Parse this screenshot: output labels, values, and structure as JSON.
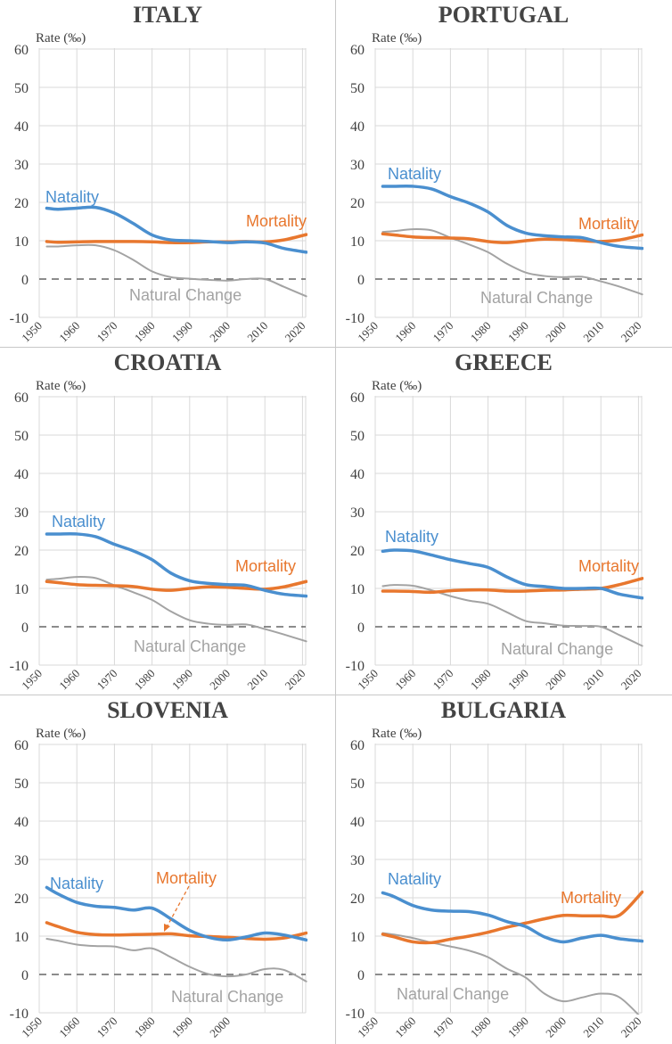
{
  "chart_data": [
    {
      "type": "line",
      "title": "ITALY",
      "ylabel": "Rate (‰)",
      "ylim": [
        -10,
        60
      ],
      "yticks": [
        "60",
        "50",
        "40",
        "30",
        "20",
        "10",
        "0",
        "-10"
      ],
      "xticks": [
        "1950",
        "1960",
        "1970",
        "1980",
        "1990",
        "2000",
        "2010",
        "2020"
      ],
      "x": [
        1952,
        1955,
        1960,
        1965,
        1970,
        1975,
        1980,
        1985,
        1990,
        1995,
        2000,
        2005,
        2010,
        2015,
        2021
      ],
      "series": [
        {
          "name": "Natality",
          "color": "#4a8fcf",
          "values": [
            18.5,
            18.2,
            18.5,
            18.7,
            17.2,
            14.5,
            11.5,
            10.2,
            10,
            9.8,
            9.5,
            9.7,
            9.4,
            8,
            7
          ]
        },
        {
          "name": "Mortality",
          "color": "#e8772e",
          "values": [
            9.8,
            9.6,
            9.7,
            9.8,
            9.8,
            9.8,
            9.7,
            9.5,
            9.5,
            9.7,
            9.7,
            9.8,
            9.7,
            10.2,
            11.6
          ]
        },
        {
          "name": "Natural Change",
          "color": "#a3a3a3",
          "values": [
            8.5,
            8.5,
            8.8,
            8.8,
            7.5,
            5,
            2,
            0.5,
            0.1,
            -0.2,
            -0.4,
            0,
            0,
            -2,
            -4.5
          ]
        }
      ]
    },
    {
      "type": "line",
      "title": "PORTUGAL",
      "ylabel": "Rate (‰)",
      "ylim": [
        -10,
        60
      ],
      "yticks": [
        "60",
        "50",
        "40",
        "30",
        "20",
        "10",
        "0",
        "-10"
      ],
      "xticks": [
        "1950",
        "1960",
        "1970",
        "1980",
        "1990",
        "2000",
        "2010",
        "2020"
      ],
      "x": [
        1952,
        1955,
        1960,
        1965,
        1970,
        1975,
        1980,
        1985,
        1990,
        1995,
        2000,
        2005,
        2010,
        2015,
        2021
      ],
      "series": [
        {
          "name": "Natality",
          "color": "#4a8fcf",
          "values": [
            24.2,
            24.2,
            24.2,
            23.5,
            21.5,
            19.8,
            17.5,
            14,
            12,
            11.3,
            11,
            10.8,
            9.5,
            8.5,
            8
          ]
        },
        {
          "name": "Mortality",
          "color": "#e8772e",
          "values": [
            11.8,
            11.5,
            11,
            10.8,
            10.7,
            10.5,
            9.8,
            9.5,
            10,
            10.4,
            10.3,
            10,
            9.8,
            10.2,
            11.5
          ]
        },
        {
          "name": "Natural Change",
          "color": "#a3a3a3",
          "values": [
            12.3,
            12.5,
            13,
            12.7,
            10.8,
            9,
            7,
            4,
            1.7,
            0.8,
            0.5,
            0.6,
            -0.6,
            -2,
            -4
          ]
        }
      ]
    },
    {
      "type": "line",
      "title": "CROATIA",
      "ylabel": "Rate (‰)",
      "ylim": [
        -10,
        60
      ],
      "yticks": [
        "60",
        "50",
        "40",
        "30",
        "20",
        "10",
        "0",
        "-10"
      ],
      "xticks": [
        "1950",
        "1960",
        "1970",
        "1980",
        "1990",
        "2000",
        "2010",
        "2020"
      ],
      "x": [
        1952,
        1955,
        1960,
        1965,
        1970,
        1975,
        1980,
        1985,
        1990,
        1995,
        2000,
        2005,
        2010,
        2015,
        2021
      ],
      "series": [
        {
          "name": "Natality",
          "color": "#4a8fcf",
          "values": [
            24.2,
            24.2,
            24.2,
            23.5,
            21.5,
            19.8,
            17.5,
            14,
            12,
            11.3,
            11,
            10.8,
            9.5,
            8.5,
            8
          ]
        },
        {
          "name": "Mortality",
          "color": "#e8772e",
          "values": [
            11.8,
            11.5,
            11,
            10.8,
            10.7,
            10.5,
            9.8,
            9.5,
            10,
            10.4,
            10.3,
            10,
            9.8,
            10.4,
            11.8
          ]
        },
        {
          "name": "Natural Change",
          "color": "#a3a3a3",
          "values": [
            12.3,
            12.5,
            13,
            12.7,
            10.8,
            9,
            7,
            4,
            1.7,
            0.8,
            0.5,
            0.6,
            -0.6,
            -2,
            -3.8
          ]
        }
      ]
    },
    {
      "type": "line",
      "title": "GREECE",
      "ylabel": "Rate (‰)",
      "ylim": [
        -10,
        60
      ],
      "yticks": [
        "60",
        "50",
        "40",
        "30",
        "20",
        "10",
        "0",
        "-10"
      ],
      "xticks": [
        "1950",
        "1960",
        "1970",
        "1980",
        "1990",
        "2000",
        "2010",
        "2020"
      ],
      "x": [
        1952,
        1955,
        1960,
        1965,
        1970,
        1975,
        1980,
        1985,
        1990,
        1995,
        2000,
        2005,
        2010,
        2015,
        2021
      ],
      "series": [
        {
          "name": "Natality",
          "color": "#4a8fcf",
          "values": [
            19.7,
            20,
            19.8,
            18.7,
            17.5,
            16.5,
            15.5,
            13,
            11,
            10.5,
            10,
            10,
            10,
            8.5,
            7.5
          ]
        },
        {
          "name": "Mortality",
          "color": "#e8772e",
          "values": [
            9.3,
            9.3,
            9.2,
            9.0,
            9.4,
            9.6,
            9.6,
            9.3,
            9.3,
            9.5,
            9.6,
            9.8,
            10,
            11,
            12.6
          ]
        },
        {
          "name": "Natural Change",
          "color": "#a3a3a3",
          "values": [
            10.6,
            10.9,
            10.7,
            9.5,
            8,
            6.8,
            6,
            3.8,
            1.5,
            0.9,
            0.3,
            0.2,
            0,
            -2.2,
            -5
          ]
        }
      ]
    },
    {
      "type": "line",
      "title": "SLOVENIA",
      "ylabel": "Rate (‰)",
      "ylim": [
        -10,
        60
      ],
      "yticks": [
        "60",
        "50",
        "40",
        "30",
        "20",
        "10",
        "0",
        "-10"
      ],
      "xticks": [
        "1950",
        "1960",
        "1970",
        "1980",
        "1990",
        "2000",
        "",
        ""
      ],
      "x": [
        1952,
        1955,
        1960,
        1965,
        1970,
        1975,
        1980,
        1985,
        1990,
        1995,
        2000,
        2005,
        2010,
        2015,
        2021
      ],
      "series": [
        {
          "name": "Natality",
          "color": "#4a8fcf",
          "values": [
            22.7,
            21,
            18.8,
            17.8,
            17.5,
            16.8,
            17.3,
            14.5,
            11.5,
            9.7,
            9,
            9.8,
            10.8,
            10.3,
            9
          ]
        },
        {
          "name": "Mortality",
          "color": "#e8772e",
          "values": [
            13.5,
            12.5,
            11,
            10.4,
            10.3,
            10.4,
            10.5,
            10.6,
            10.1,
            9.9,
            9.7,
            9.4,
            9.2,
            9.5,
            10.8
          ]
        },
        {
          "name": "Natural Change",
          "color": "#a3a3a3",
          "values": [
            9.3,
            8.8,
            7.8,
            7.4,
            7.3,
            6.3,
            6.8,
            4.5,
            2,
            0.1,
            -0.5,
            0,
            1.4,
            1.2,
            -1.8
          ]
        }
      ]
    },
    {
      "type": "line",
      "title": "BULGARIA",
      "ylabel": "Rate (‰)",
      "ylim": [
        -10,
        60
      ],
      "yticks": [
        "60",
        "50",
        "40",
        "30",
        "20",
        "10",
        "0",
        "-10"
      ],
      "xticks": [
        "1950",
        "1960",
        "1970",
        "1980",
        "1990",
        "2000",
        "2010",
        "2020"
      ],
      "x": [
        1952,
        1955,
        1960,
        1965,
        1970,
        1975,
        1980,
        1985,
        1990,
        1995,
        2000,
        2005,
        2010,
        2015,
        2021
      ],
      "series": [
        {
          "name": "Natality",
          "color": "#4a8fcf",
          "values": [
            21.3,
            20.3,
            18,
            16.8,
            16.5,
            16.4,
            15.5,
            13.8,
            12.5,
            9.8,
            8.5,
            9.5,
            10.2,
            9.3,
            8.7
          ]
        },
        {
          "name": "Mortality",
          "color": "#e8772e",
          "values": [
            10.5,
            9.8,
            8.5,
            8.3,
            9.2,
            10,
            11,
            12.3,
            13.4,
            14.5,
            15.4,
            15.3,
            15.3,
            15.5,
            21.5
          ]
        },
        {
          "name": "Natural Change",
          "color": "#a3a3a3",
          "values": [
            10.8,
            10.4,
            9.5,
            8.3,
            7.3,
            6.2,
            4.5,
            1.5,
            -0.8,
            -5,
            -7,
            -6,
            -5,
            -6,
            -11.5
          ]
        }
      ]
    }
  ],
  "zero_line": {
    "value": 0,
    "style": "dashed",
    "color": "#666666"
  },
  "grid": true,
  "colors": {
    "title": "#444444",
    "axis_text": "#404040",
    "grid": "#d9d9d9"
  }
}
